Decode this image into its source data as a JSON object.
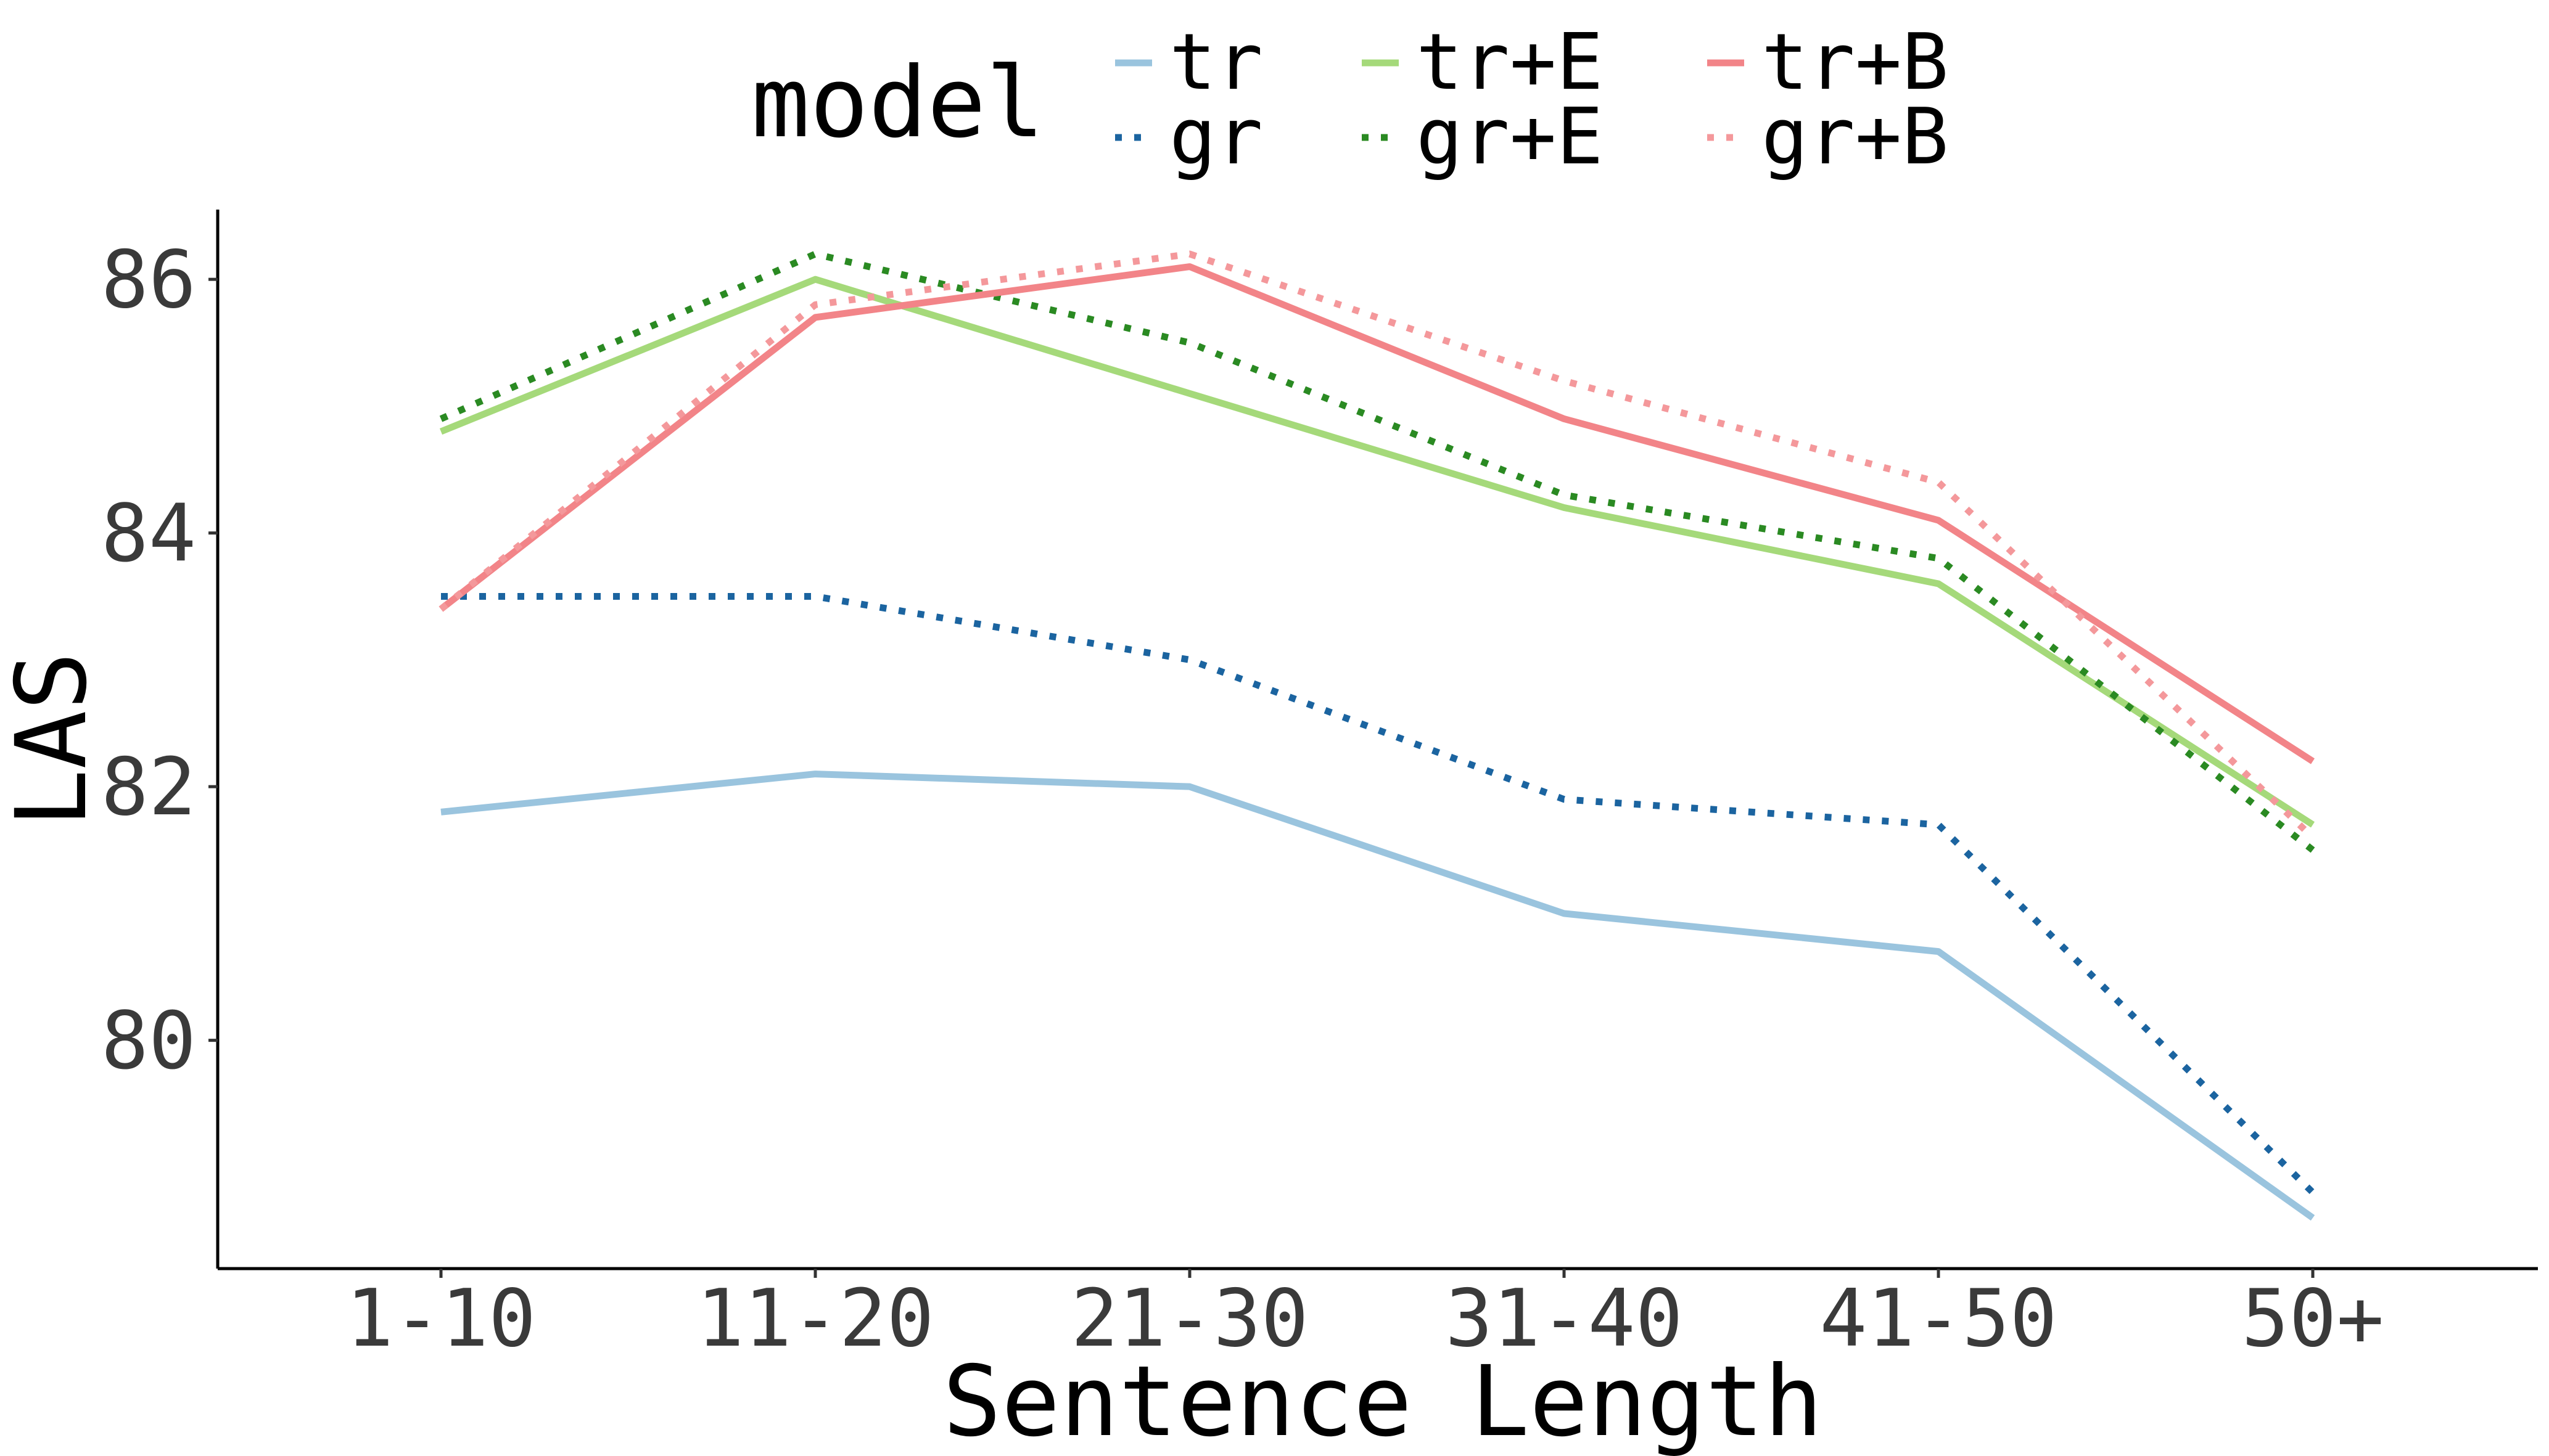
{
  "chart_data": {
    "type": "line",
    "xlabel": "Sentence Length",
    "ylabel": "LAS",
    "categories": [
      "1-10",
      "11-20",
      "21-30",
      "31-40",
      "41-50",
      "50+"
    ],
    "ylim": [
      78.2,
      86.55
    ],
    "yticks": [
      80,
      82,
      84,
      86
    ],
    "grid": false,
    "legend": {
      "title": "model",
      "position": "top"
    },
    "series": [
      {
        "name": "tr",
        "style": "solid",
        "color": "#9ac4de",
        "values": [
          81.8,
          82.1,
          82.0,
          81.0,
          80.7,
          78.6
        ]
      },
      {
        "name": "gr",
        "style": "dotted",
        "color": "#1b64a0",
        "values": [
          83.5,
          83.5,
          83.0,
          81.9,
          81.7,
          78.8
        ]
      },
      {
        "name": "tr+E",
        "style": "solid",
        "color": "#a5d97a",
        "values": [
          84.8,
          86.0,
          85.1,
          84.2,
          83.6,
          81.7
        ]
      },
      {
        "name": "gr+E",
        "style": "dotted",
        "color": "#2a8a22",
        "values": [
          84.9,
          86.2,
          85.5,
          84.3,
          83.8,
          81.5
        ]
      },
      {
        "name": "tr+B",
        "style": "solid",
        "color": "#f28488",
        "values": [
          83.4,
          85.7,
          86.1,
          84.9,
          84.1,
          82.2
        ]
      },
      {
        "name": "gr+B",
        "style": "dotted",
        "color": "#f4989b",
        "values": [
          83.4,
          85.8,
          86.2,
          85.2,
          84.4,
          81.6
        ]
      }
    ]
  }
}
